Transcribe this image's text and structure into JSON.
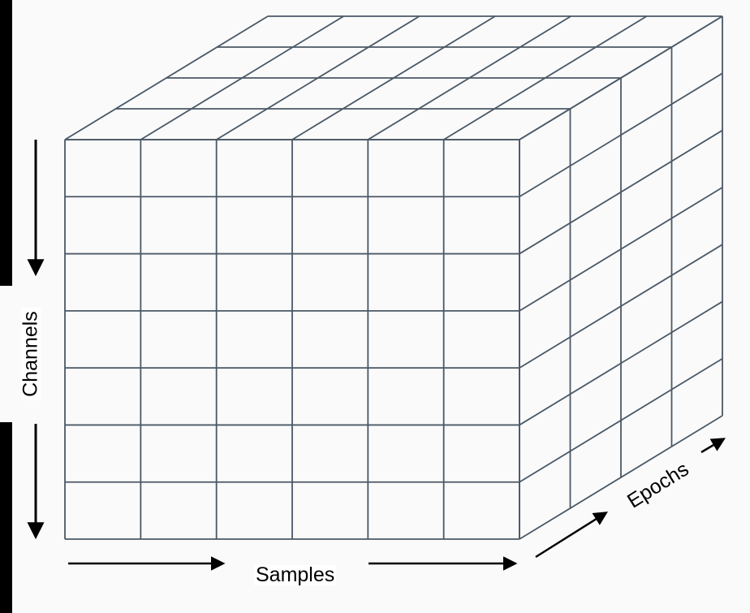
{
  "diagram": {
    "grid": {
      "front_columns": 6,
      "front_rows": 7,
      "depth_layers": 4
    },
    "colors": {
      "grid_line": "#4a5866",
      "background": "#fafafa",
      "arrow": "#000000"
    },
    "labels": {
      "samples": "Samples",
      "channels": "Channels",
      "epochs": "Epochs"
    }
  }
}
